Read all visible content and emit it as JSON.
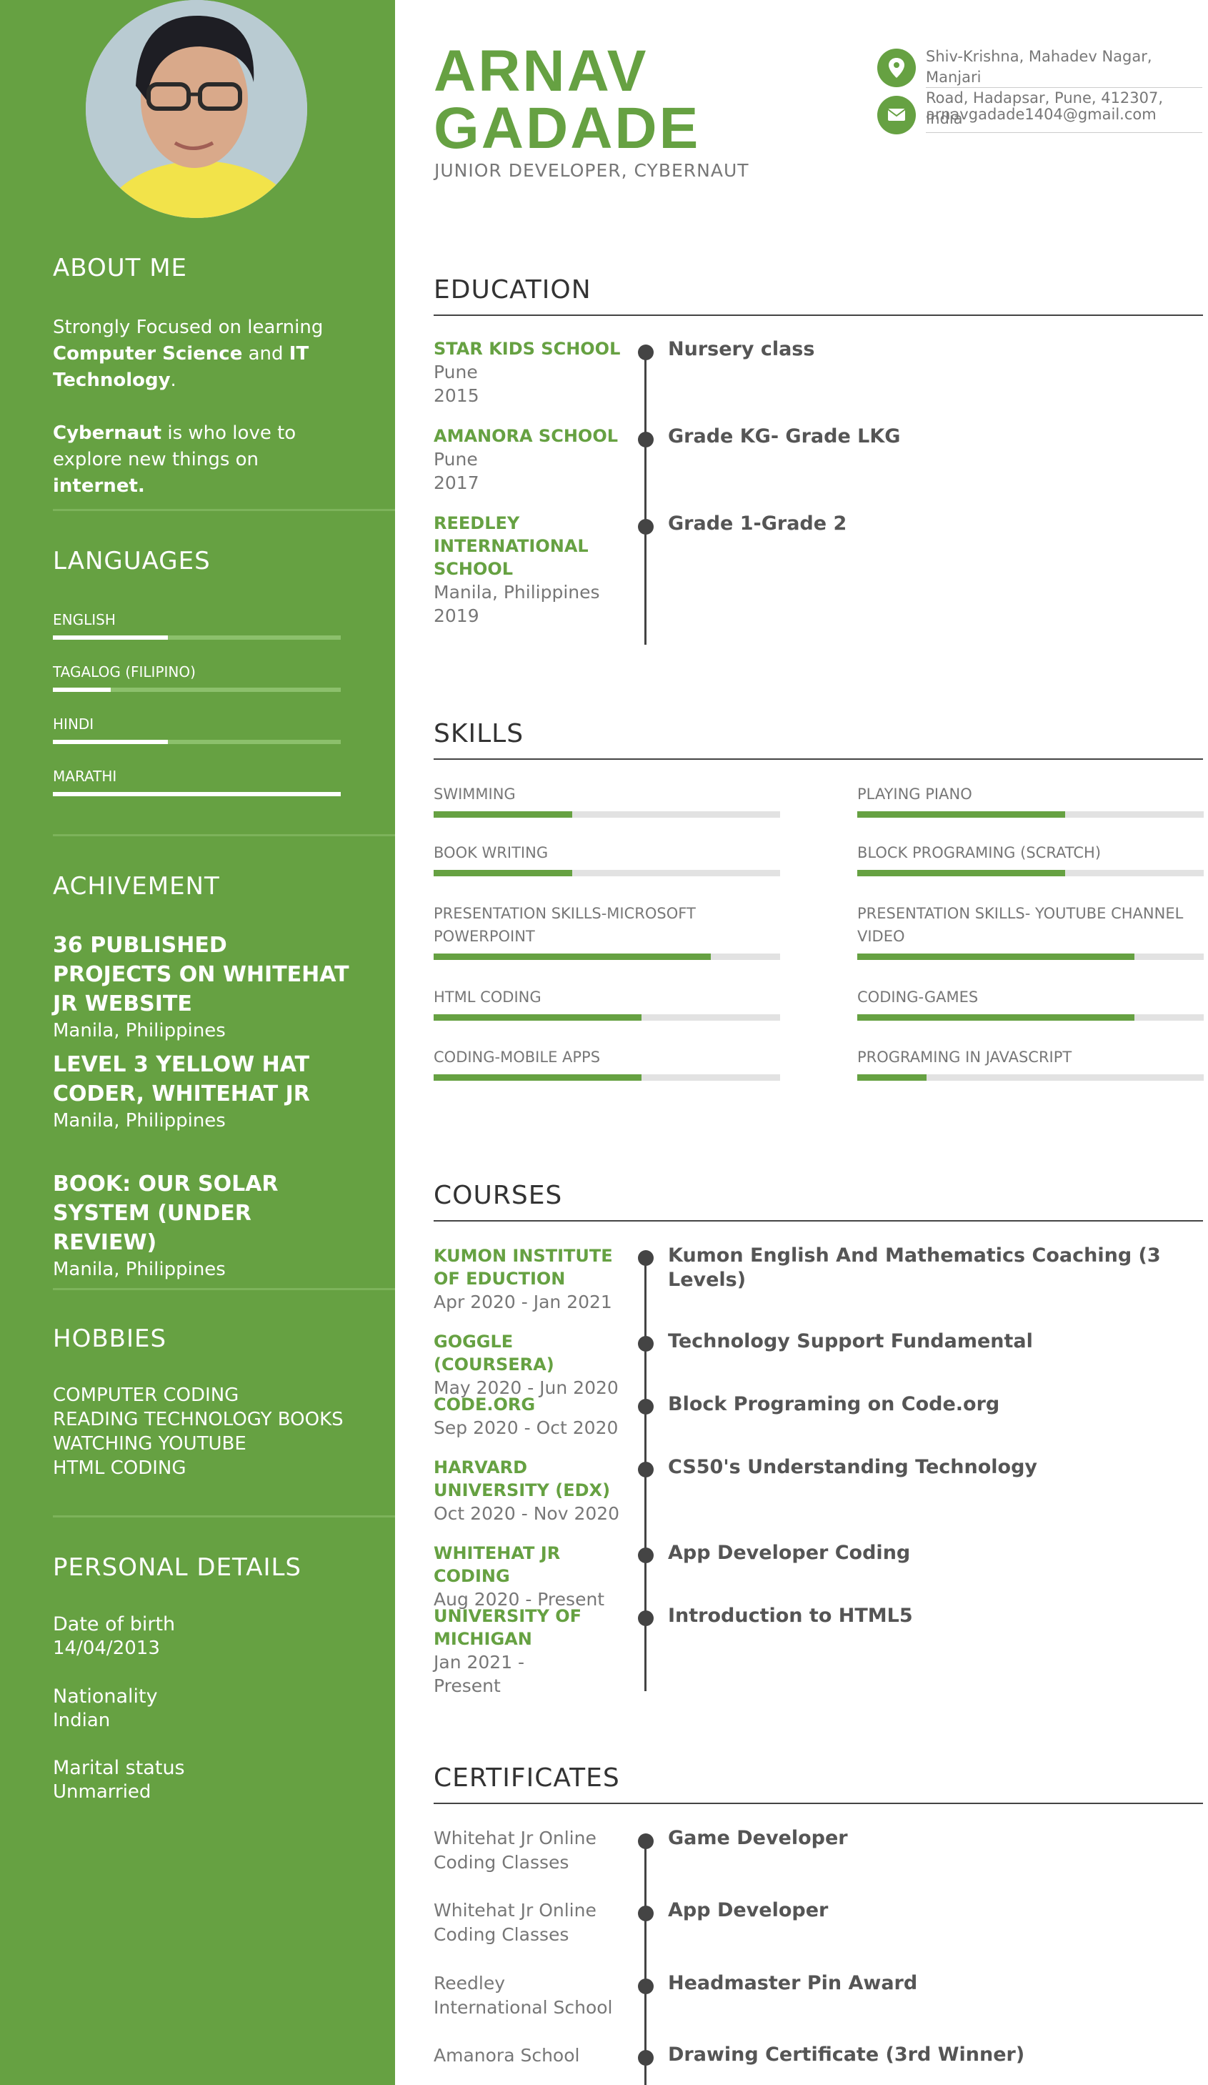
{
  "profile": {
    "first_name": "ARNAV",
    "last_name": "GADADE",
    "title": "JUNIOR DEVELOPER, CYBERNAUT",
    "address_line1": "Shiv-Krishna, Mahadev Nagar, Manjari",
    "address_line2": "Road, Hadapsar, Pune, 412307, India",
    "email": "arnavgadade1404@gmail.com"
  },
  "about": {
    "heading": "ABOUT ME",
    "p1_a": "Strongly Focused on learning ",
    "p1_b": "Computer Science",
    "p1_c": " and ",
    "p1_d": "IT Technology",
    "p1_e": ".",
    "p2_a": "Cybernaut",
    "p2_b": " is who love to explore new things on ",
    "p2_c": "internet."
  },
  "languages": {
    "heading": "LANGUAGES",
    "items": [
      {
        "name": "ENGLISH",
        "level": 0.4
      },
      {
        "name": "TAGALOG (FILIPINO)",
        "level": 0.2
      },
      {
        "name": "HINDI",
        "level": 0.4
      },
      {
        "name": "MARATHI",
        "level": 1.0
      }
    ]
  },
  "achievements": {
    "heading": "ACHIVEMENT",
    "items": [
      {
        "title": "36 PUBLISHED PROJECTS ON WHITEHAT JR WEBSITE",
        "location": "Manila, Philippines"
      },
      {
        "title": "LEVEL 3 YELLOW HAT CODER, WHITEHAT JR",
        "location": "Manila, Philippines"
      },
      {
        "title": "BOOK: OUR SOLAR SYSTEM (UNDER REVIEW)",
        "location": "Manila, Philippines"
      }
    ]
  },
  "hobbies": {
    "heading": "HOBBIES",
    "items": [
      "COMPUTER CODING",
      "READING TECHNOLOGY BOOKS",
      "WATCHING YOUTUBE",
      "HTML CODING"
    ]
  },
  "personal": {
    "heading": "PERSONAL DETAILS",
    "items": [
      {
        "label": "Date of birth",
        "value": "14/04/2013"
      },
      {
        "label": "Nationality",
        "value": "Indian"
      },
      {
        "label": "Marital status",
        "value": "Unmarried"
      }
    ]
  },
  "education": {
    "heading": "EDUCATION",
    "items": [
      {
        "school": "STAR KIDS SCHOOL",
        "place": "Pune",
        "year": "2015",
        "detail": "Nursery class"
      },
      {
        "school": "AMANORA SCHOOL",
        "place": "Pune",
        "year": "2017",
        "detail": "Grade KG- Grade LKG"
      },
      {
        "school": "REEDLEY INTERNATIONAL SCHOOL",
        "place": "Manila, Philippines",
        "year": "2019",
        "detail": "Grade 1-Grade 2"
      }
    ]
  },
  "skills": {
    "heading": "SKILLS",
    "items": [
      {
        "name": "SWIMMING",
        "level": 0.4
      },
      {
        "name": "PLAYING PIANO",
        "level": 0.6
      },
      {
        "name": "BOOK WRITING",
        "level": 0.4
      },
      {
        "name": "BLOCK PROGRAMING (SCRATCH)",
        "level": 0.6
      },
      {
        "name": "PRESENTATION SKILLS-MICROSOFT POWERPOINT",
        "level": 0.8
      },
      {
        "name": "PRESENTATION SKILLS- YOUTUBE CHANNEL VIDEO",
        "level": 0.8
      },
      {
        "name": "HTML CODING",
        "level": 0.6
      },
      {
        "name": "CODING-GAMES",
        "level": 0.8
      },
      {
        "name": "CODING-MOBILE APPS",
        "level": 0.6
      },
      {
        "name": "PROGRAMING IN JAVASCRIPT",
        "level": 0.2
      }
    ]
  },
  "courses": {
    "heading": "COURSES",
    "items": [
      {
        "org": "KUMON INSTITUTE OF EDUCTION",
        "dates": "Apr 2020 - Jan 2021",
        "title": "Kumon English And Mathematics Coaching (3 Levels)"
      },
      {
        "org": "GOGGLE (COURSERA)",
        "dates": "May 2020 - Jun 2020",
        "title": "Technology Support Fundamental"
      },
      {
        "org": "CODE.ORG",
        "dates": "Sep 2020 - Oct 2020",
        "title": "Block Programing on Code.org"
      },
      {
        "org": "HARVARD UNIVERSITY (EDX)",
        "dates": "Oct 2020 - Nov 2020",
        "title": "CS50's Understanding Technology"
      },
      {
        "org": "WHITEHAT JR CODING",
        "dates": "Aug 2020 - Present",
        "title": "App Developer Coding"
      },
      {
        "org": "UNIVERSITY OF MICHIGAN",
        "dates": "Jan 2021 - Present",
        "title": "Introduction to HTML5"
      }
    ]
  },
  "certificates": {
    "heading": "CERTIFICATES",
    "items": [
      {
        "issuer": "Whitehat Jr Online Coding Classes",
        "title": "Game Developer"
      },
      {
        "issuer": "Whitehat Jr Online Coding Classes",
        "title": "App Developer"
      },
      {
        "issuer": "Reedley International School",
        "title": "Headmaster Pin Award"
      },
      {
        "issuer": "Amanora School",
        "title": "Drawing Certificate (3rd Winner)"
      }
    ]
  },
  "colors": {
    "accent": "#66a142",
    "dark": "#444444"
  }
}
